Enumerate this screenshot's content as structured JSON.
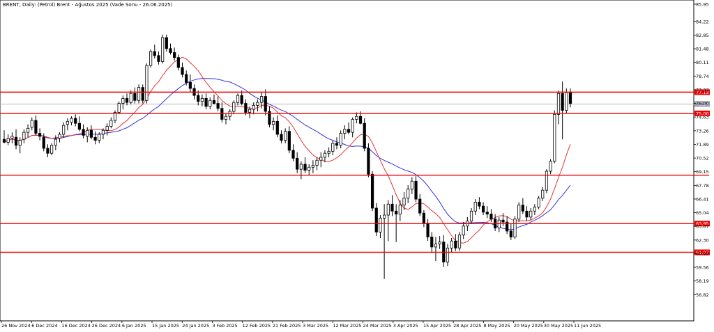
{
  "chart_data": {
    "type": "candlestick",
    "title": "BRENT, Daily:  (Petrol) Brent - Ağustos 2025 (Vade Sonu - 26.06.2025)",
    "ylim": [
      55.45,
      85.95
    ],
    "y_ticks": [
      "85.95",
      "84.22",
      "82.85",
      "81.48",
      "80.11",
      "78.74",
      "77.37",
      "76.00",
      "74.63",
      "73.26",
      "71.89",
      "70.52",
      "69.15",
      "67.78",
      "66.41",
      "65.04",
      "63.67",
      "62.30",
      "60.93",
      "59.56",
      "58.19",
      "56.82"
    ],
    "x_labels": [
      "26 Nov 2024",
      "6 Dec 2024",
      "16 Dec 2024",
      "26 Dec 2024",
      "6 Jan 2025",
      "15 Jan 2025",
      "24 Jan 2025",
      "3 Feb 2025",
      "12 Feb 2025",
      "21 Feb 2025",
      "3 Mar 2025",
      "12 Mar 2025",
      "24 Mar 2025",
      "3 Apr 2025",
      "15 Apr 2025",
      "28 Apr 2025",
      "8 May 2025",
      "20 May 2025",
      "30 May 2025",
      "11 Jun 2025"
    ],
    "current_price": "75.94",
    "horizontal_levels": [
      {
        "label": "77.13",
        "value": 77.13
      },
      {
        "label": "75.00",
        "value": 75.0
      },
      {
        "label": "",
        "value": 68.8
      },
      {
        "label": "63.95",
        "value": 63.95
      },
      {
        "label": "61.07",
        "value": 61.07
      }
    ],
    "candles": [
      [
        72.4,
        73.3,
        72.0,
        72.1
      ],
      [
        72.1,
        72.9,
        71.8,
        72.5
      ],
      [
        72.5,
        73.1,
        72.0,
        72.7
      ],
      [
        72.6,
        73.4,
        71.4,
        71.8
      ],
      [
        71.8,
        72.6,
        71.0,
        72.3
      ],
      [
        72.4,
        73.4,
        72.0,
        73.1
      ],
      [
        73.1,
        73.9,
        72.6,
        73.5
      ],
      [
        73.6,
        74.6,
        73.3,
        74.3
      ],
      [
        74.3,
        74.8,
        72.8,
        73.0
      ],
      [
        73.0,
        73.5,
        72.3,
        72.7
      ],
      [
        72.6,
        73.0,
        71.2,
        71.5
      ],
      [
        71.5,
        71.9,
        70.6,
        71.0
      ],
      [
        71.0,
        72.0,
        70.8,
        71.8
      ],
      [
        71.8,
        72.8,
        71.3,
        72.4
      ],
      [
        72.5,
        73.1,
        72.1,
        72.9
      ],
      [
        72.9,
        74.1,
        72.6,
        73.8
      ],
      [
        73.9,
        74.5,
        73.3,
        74.2
      ],
      [
        74.1,
        74.7,
        73.8,
        74.5
      ],
      [
        74.5,
        74.9,
        73.7,
        74.0
      ],
      [
        74.0,
        74.7,
        73.2,
        73.4
      ],
      [
        73.4,
        73.9,
        72.5,
        72.8
      ],
      [
        72.7,
        73.6,
        72.1,
        73.3
      ],
      [
        73.3,
        73.8,
        72.4,
        72.6
      ],
      [
        72.6,
        73.2,
        71.9,
        72.3
      ],
      [
        72.3,
        73.1,
        72.0,
        72.9
      ],
      [
        72.9,
        73.5,
        72.4,
        73.3
      ],
      [
        73.3,
        74.0,
        72.8,
        73.7
      ],
      [
        73.7,
        74.6,
        73.5,
        74.3
      ],
      [
        74.3,
        75.3,
        74.0,
        75.1
      ],
      [
        75.1,
        76.2,
        74.9,
        76.0
      ],
      [
        76.0,
        76.8,
        75.4,
        76.5
      ],
      [
        76.5,
        77.0,
        75.8,
        76.1
      ],
      [
        76.1,
        77.3,
        75.9,
        77.0
      ],
      [
        77.0,
        77.6,
        76.0,
        76.3
      ],
      [
        76.3,
        77.9,
        76.0,
        77.6
      ],
      [
        77.6,
        77.9,
        76.0,
        76.3
      ],
      [
        76.3,
        80.0,
        76.0,
        79.8
      ],
      [
        79.8,
        81.4,
        79.6,
        81.2
      ],
      [
        81.2,
        81.9,
        80.5,
        80.8
      ],
      [
        80.8,
        81.2,
        79.9,
        80.2
      ],
      [
        80.2,
        82.9,
        80.0,
        82.6
      ],
      [
        82.6,
        82.9,
        81.2,
        81.5
      ],
      [
        81.5,
        82.0,
        80.9,
        81.1
      ],
      [
        81.1,
        81.6,
        80.3,
        80.6
      ],
      [
        80.6,
        80.9,
        79.3,
        79.6
      ],
      [
        79.6,
        80.1,
        78.6,
        78.9
      ],
      [
        78.9,
        79.3,
        77.8,
        78.1
      ],
      [
        78.1,
        78.9,
        77.1,
        77.5
      ],
      [
        77.5,
        77.9,
        76.4,
        76.8
      ],
      [
        76.8,
        77.3,
        75.8,
        76.2
      ],
      [
        76.2,
        76.9,
        75.7,
        76.5
      ],
      [
        76.5,
        77.0,
        75.4,
        75.7
      ],
      [
        75.7,
        76.6,
        75.4,
        76.3
      ],
      [
        76.3,
        76.9,
        75.9,
        76.0
      ],
      [
        76.0,
        76.7,
        75.2,
        75.5
      ],
      [
        75.5,
        76.1,
        74.1,
        74.4
      ],
      [
        74.4,
        75.0,
        73.9,
        74.7
      ],
      [
        74.7,
        75.4,
        74.3,
        75.2
      ],
      [
        75.2,
        76.3,
        74.9,
        76.1
      ],
      [
        76.1,
        77.0,
        75.8,
        76.8
      ],
      [
        76.8,
        77.3,
        75.8,
        76.0
      ],
      [
        76.0,
        76.4,
        74.8,
        75.1
      ],
      [
        75.1,
        75.7,
        74.5,
        75.4
      ],
      [
        75.4,
        76.1,
        74.9,
        75.8
      ],
      [
        75.8,
        76.4,
        75.2,
        76.1
      ],
      [
        76.1,
        77.1,
        75.5,
        76.7
      ],
      [
        76.7,
        77.4,
        74.8,
        75.2
      ],
      [
        75.2,
        75.7,
        73.6,
        73.9
      ],
      [
        73.9,
        74.6,
        73.3,
        74.2
      ],
      [
        74.2,
        74.8,
        72.6,
        72.9
      ],
      [
        72.9,
        73.3,
        72.0,
        72.3
      ],
      [
        72.3,
        73.5,
        72.0,
        73.2
      ],
      [
        73.2,
        73.7,
        71.0,
        71.3
      ],
      [
        71.3,
        71.9,
        70.2,
        70.5
      ],
      [
        70.5,
        71.1,
        69.0,
        69.4
      ],
      [
        69.4,
        70.2,
        68.4,
        69.9
      ],
      [
        69.9,
        70.6,
        69.0,
        69.3
      ],
      [
        69.3,
        69.9,
        68.8,
        69.6
      ],
      [
        69.6,
        70.3,
        69.0,
        69.8
      ],
      [
        69.8,
        70.6,
        69.3,
        70.3
      ],
      [
        70.3,
        71.1,
        69.6,
        70.6
      ],
      [
        70.6,
        71.3,
        70.1,
        71.0
      ],
      [
        71.0,
        71.6,
        70.6,
        71.2
      ],
      [
        71.2,
        72.3,
        70.8,
        72.0
      ],
      [
        72.0,
        72.6,
        71.4,
        71.8
      ],
      [
        71.8,
        73.3,
        71.5,
        73.0
      ],
      [
        73.0,
        73.8,
        72.4,
        73.4
      ],
      [
        73.4,
        74.1,
        72.9,
        73.1
      ],
      [
        73.1,
        74.6,
        72.6,
        74.4
      ],
      [
        74.4,
        75.1,
        74.0,
        74.7
      ],
      [
        74.7,
        75.2,
        73.9,
        74.0
      ],
      [
        74.0,
        74.5,
        71.2,
        71.5
      ],
      [
        71.5,
        72.0,
        68.6,
        68.9
      ],
      [
        68.9,
        69.2,
        65.2,
        65.5
      ],
      [
        65.5,
        66.0,
        62.7,
        63.1
      ],
      [
        63.1,
        64.8,
        62.5,
        64.5
      ],
      [
        64.5,
        65.9,
        58.4,
        64.8
      ],
      [
        64.8,
        66.3,
        62.2,
        65.9
      ],
      [
        65.9,
        66.8,
        64.7,
        65.2
      ],
      [
        65.2,
        65.9,
        62.1,
        64.9
      ],
      [
        64.9,
        66.3,
        64.2,
        65.8
      ],
      [
        65.8,
        67.1,
        65.3,
        66.5
      ],
      [
        66.5,
        67.8,
        66.0,
        67.4
      ],
      [
        67.4,
        68.6,
        66.9,
        68.2
      ],
      [
        68.2,
        68.7,
        66.1,
        66.4
      ],
      [
        66.4,
        66.9,
        64.7,
        65.0
      ],
      [
        65.0,
        65.3,
        63.6,
        64.0
      ],
      [
        64.0,
        64.4,
        62.2,
        62.6
      ],
      [
        62.6,
        63.1,
        61.0,
        61.6
      ],
      [
        61.6,
        62.6,
        60.2,
        61.9
      ],
      [
        61.9,
        62.7,
        61.4,
        62.1
      ],
      [
        62.1,
        62.8,
        59.6,
        60.1
      ],
      [
        60.1,
        61.9,
        59.7,
        61.5
      ],
      [
        61.5,
        62.5,
        61.1,
        62.2
      ],
      [
        62.2,
        62.9,
        61.2,
        61.5
      ],
      [
        61.5,
        63.1,
        61.2,
        62.8
      ],
      [
        62.8,
        64.1,
        62.4,
        63.7
      ],
      [
        63.7,
        64.6,
        63.2,
        64.2
      ],
      [
        64.2,
        65.5,
        63.9,
        65.2
      ],
      [
        65.2,
        66.4,
        64.8,
        66.1
      ],
      [
        66.1,
        66.6,
        65.4,
        65.7
      ],
      [
        65.7,
        66.1,
        64.8,
        65.1
      ],
      [
        65.1,
        65.7,
        64.5,
        64.9
      ],
      [
        64.9,
        65.4,
        64.1,
        64.4
      ],
      [
        64.4,
        64.9,
        63.2,
        63.5
      ],
      [
        63.5,
        64.6,
        63.1,
        64.3
      ],
      [
        64.3,
        65.0,
        63.7,
        64.1
      ],
      [
        64.1,
        64.7,
        62.9,
        63.2
      ],
      [
        63.2,
        63.9,
        62.3,
        62.6
      ],
      [
        62.6,
        64.7,
        62.4,
        64.4
      ],
      [
        64.4,
        66.1,
        64.1,
        65.8
      ],
      [
        65.8,
        66.5,
        64.9,
        65.2
      ],
      [
        65.2,
        65.7,
        64.2,
        64.6
      ],
      [
        64.6,
        65.5,
        64.3,
        65.2
      ],
      [
        65.2,
        65.9,
        64.8,
        65.6
      ],
      [
        65.6,
        66.7,
        65.4,
        66.5
      ],
      [
        66.5,
        67.6,
        66.2,
        67.3
      ],
      [
        67.3,
        69.4,
        67.0,
        69.2
      ],
      [
        69.2,
        70.4,
        68.9,
        70.2
      ],
      [
        70.2,
        75.3,
        70.0,
        74.9
      ],
      [
        74.9,
        77.3,
        73.9,
        77.0
      ],
      [
        77.0,
        78.2,
        72.4,
        75.3
      ],
      [
        75.3,
        77.5,
        75.0,
        77.1
      ],
      [
        77.1,
        77.5,
        75.6,
        76.0
      ]
    ]
  }
}
